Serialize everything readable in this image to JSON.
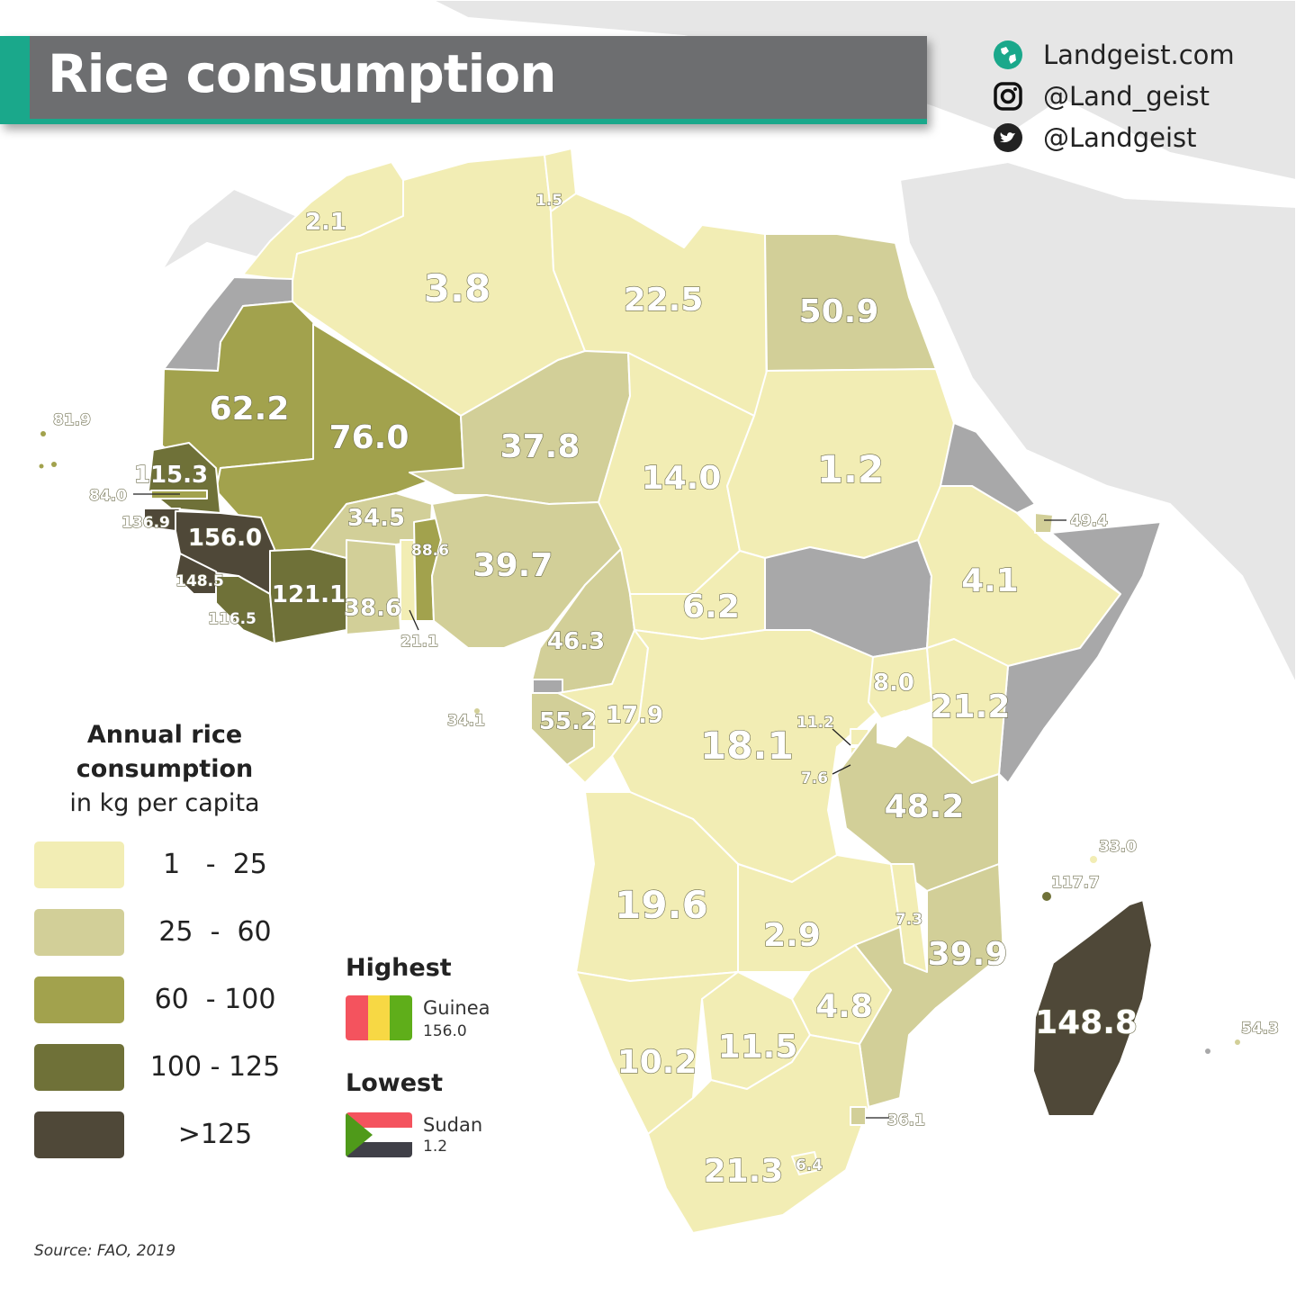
{
  "title": "Rice consumption",
  "social": {
    "website": "Landgeist.com",
    "instagram": "@Land_geist",
    "twitter": "@Landgeist"
  },
  "legend": {
    "title_line1": "Annual rice",
    "title_line2": "consumption",
    "subtitle": "in kg per capita",
    "classes": [
      {
        "range": "1   -  25",
        "color": "#f2edb4"
      },
      {
        "range": "25  -  60",
        "color": "#d2cf98"
      },
      {
        "range": "60  - 100",
        "color": "#a2a24d"
      },
      {
        "range": "100 - 125",
        "color": "#6f7138"
      },
      {
        "range": ">125",
        "color": "#4f4838"
      }
    ]
  },
  "highest": {
    "heading": "Highest",
    "country": "Guinea",
    "value": "156.0"
  },
  "lowest": {
    "heading": "Lowest",
    "country": "Sudan",
    "value": "1.2"
  },
  "source": "Source: FAO, 2019",
  "colors": {
    "no_data": "#a8a8a9",
    "background_land": "#e6e6e6",
    "sea": "#ffffff",
    "accent": "#1aa88b",
    "title_bar": "#6d6e70"
  },
  "map_values": [
    "2.1",
    "1.5",
    "3.8",
    "22.5",
    "50.9",
    "62.2",
    "76.0",
    "37.8",
    "14.0",
    "1.2",
    "81.9",
    "115.3",
    "84.0",
    "136.9",
    "156.0",
    "34.5",
    "88.6",
    "39.7",
    "49.4",
    "148.5",
    "121.1",
    "38.6",
    "116.5",
    "21.1",
    "46.3",
    "6.2",
    "4.1",
    "8.0",
    "21.2",
    "34.1",
    "55.2",
    "17.9",
    "18.1",
    "11.2",
    "7.6",
    "48.2",
    "33.0",
    "117.7",
    "19.6",
    "2.9",
    "7.3",
    "39.9",
    "4.8",
    "148.8",
    "54.3",
    "11.5",
    "10.2",
    "36.1",
    "21.3",
    "6.4"
  ]
}
